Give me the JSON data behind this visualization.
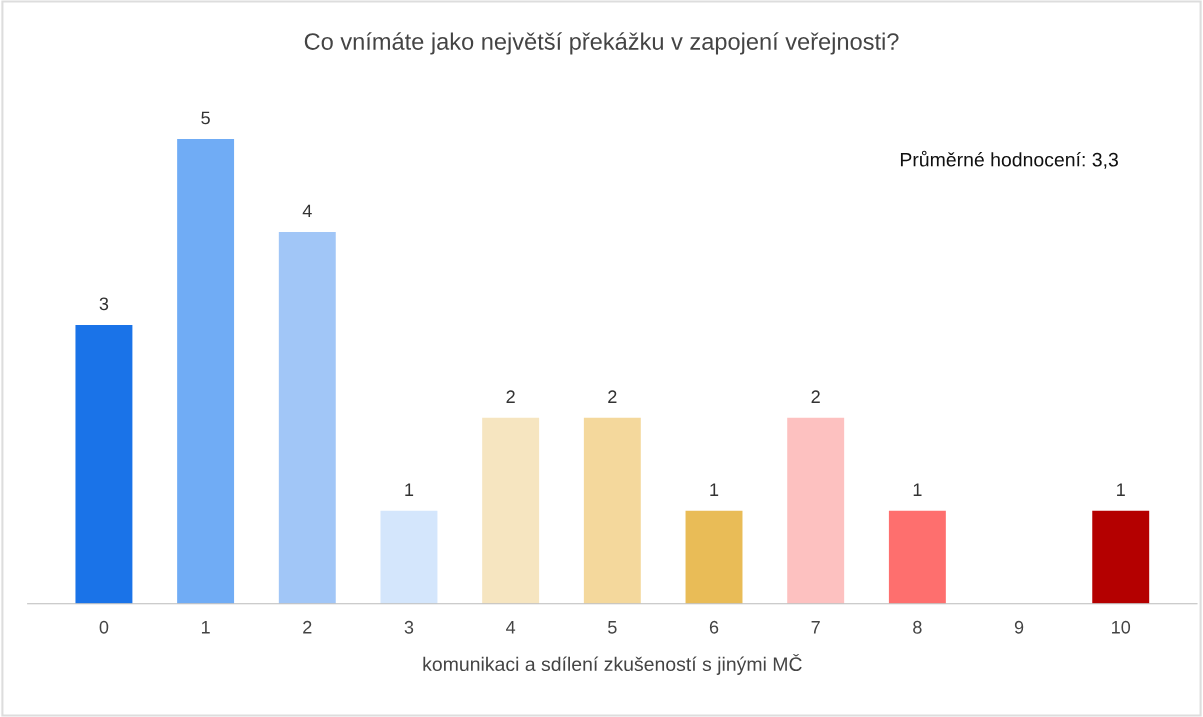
{
  "chart_data": {
    "type": "bar",
    "title": "Co vnímáte jako největší překážku v zapojení veřejnosti?",
    "xlabel": "komunikaci a sdílení zkušeností s jinými MČ",
    "categories": [
      "0",
      "1",
      "2",
      "3",
      "4",
      "5",
      "6",
      "7",
      "8",
      "9",
      "10"
    ],
    "values": [
      3,
      5,
      4,
      1,
      2,
      2,
      1,
      2,
      1,
      0,
      1
    ],
    "value_labels": [
      "3",
      "5",
      "4",
      "1",
      "2",
      "2",
      "1",
      "2",
      "1",
      null,
      "1"
    ],
    "colors": [
      "#1a73e8",
      "#70acf5",
      "#a1c6f7",
      "#d4e6fc",
      "#f6e5c0",
      "#f4d89c",
      "#e9bc57",
      "#fdc1c0",
      "#fe6f6e",
      "#cccccc",
      "#b40000"
    ],
    "annotations": [
      "Průměrné hodnocení: 3,3"
    ],
    "grid": false,
    "legend": false
  }
}
